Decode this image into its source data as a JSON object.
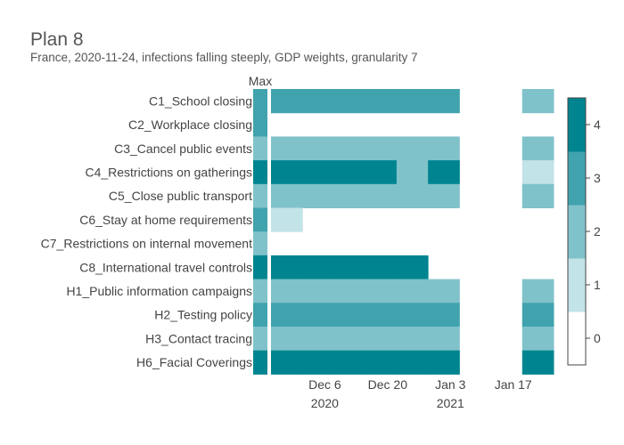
{
  "chart_data": {
    "type": "heatmap",
    "title": "Plan 8",
    "subtitle": "France, 2020-11-24, infections falling steeply, GDP weights, granularity 7",
    "max_label": "Max",
    "rows": [
      "C1_School closing",
      "C2_Workplace closing",
      "C3_Cancel public events",
      "C4_Restrictions on gatherings",
      "C5_Close public transport",
      "C6_Stay at home requirements",
      "C7_Restrictions on internal movement",
      "C8_International travel controls",
      "H1_Public information campaigns",
      "H2_Testing policy",
      "H3_Contact tracing",
      "H6_Facial Coverings"
    ],
    "max_values": [
      3,
      3,
      2,
      4,
      2,
      3,
      2,
      4,
      2,
      3,
      2,
      4
    ],
    "periods": [
      {
        "start": "2020-11-24",
        "end": "2020-12-01"
      },
      {
        "start": "2020-12-01",
        "end": "2020-12-08"
      },
      {
        "start": "2020-12-08",
        "end": "2020-12-15"
      },
      {
        "start": "2020-12-15",
        "end": "2020-12-22"
      },
      {
        "start": "2020-12-22",
        "end": "2020-12-29"
      },
      {
        "start": "2020-12-29",
        "end": "2021-01-05"
      },
      {
        "start": "2021-01-05",
        "end": "2021-01-12"
      },
      {
        "start": "2021-01-12",
        "end": "2021-01-19"
      },
      {
        "start": "2021-01-19",
        "end": "2021-01-26"
      }
    ],
    "values": [
      [
        3,
        3,
        3,
        3,
        3,
        3,
        null,
        null,
        2
      ],
      [
        null,
        null,
        null,
        null,
        null,
        null,
        null,
        null,
        null
      ],
      [
        2,
        2,
        2,
        2,
        2,
        2,
        null,
        null,
        2
      ],
      [
        4,
        4,
        4,
        4,
        2,
        4,
        null,
        null,
        1
      ],
      [
        2,
        2,
        2,
        2,
        2,
        2,
        null,
        null,
        2
      ],
      [
        1,
        null,
        null,
        null,
        null,
        null,
        null,
        null,
        null
      ],
      [
        null,
        null,
        null,
        null,
        null,
        null,
        null,
        null,
        null
      ],
      [
        4,
        4,
        4,
        4,
        4,
        null,
        null,
        null,
        null
      ],
      [
        2,
        2,
        2,
        2,
        2,
        2,
        null,
        null,
        2
      ],
      [
        3,
        3,
        3,
        3,
        3,
        3,
        null,
        null,
        3
      ],
      [
        2,
        2,
        2,
        2,
        2,
        2,
        null,
        null,
        2
      ],
      [
        4,
        4,
        4,
        4,
        4,
        4,
        null,
        null,
        4
      ]
    ],
    "x_ticks": [
      {
        "date": "2020-12-06",
        "label": "Dec 6",
        "sublabel": "2020"
      },
      {
        "date": "2020-12-20",
        "label": "Dec 20",
        "sublabel": ""
      },
      {
        "date": "2021-01-03",
        "label": "Jan 3",
        "sublabel": "2021"
      },
      {
        "date": "2021-01-17",
        "label": "Jan 17",
        "sublabel": ""
      }
    ],
    "colorscale": {
      "range": [
        0,
        4
      ],
      "ticks": [
        0,
        1,
        2,
        3,
        4
      ],
      "colors": [
        "#ffffff",
        "#c2e3e7",
        "#80c2ca",
        "#40a3ae",
        "#008590"
      ]
    },
    "legend_placement": "right",
    "grid": false
  }
}
